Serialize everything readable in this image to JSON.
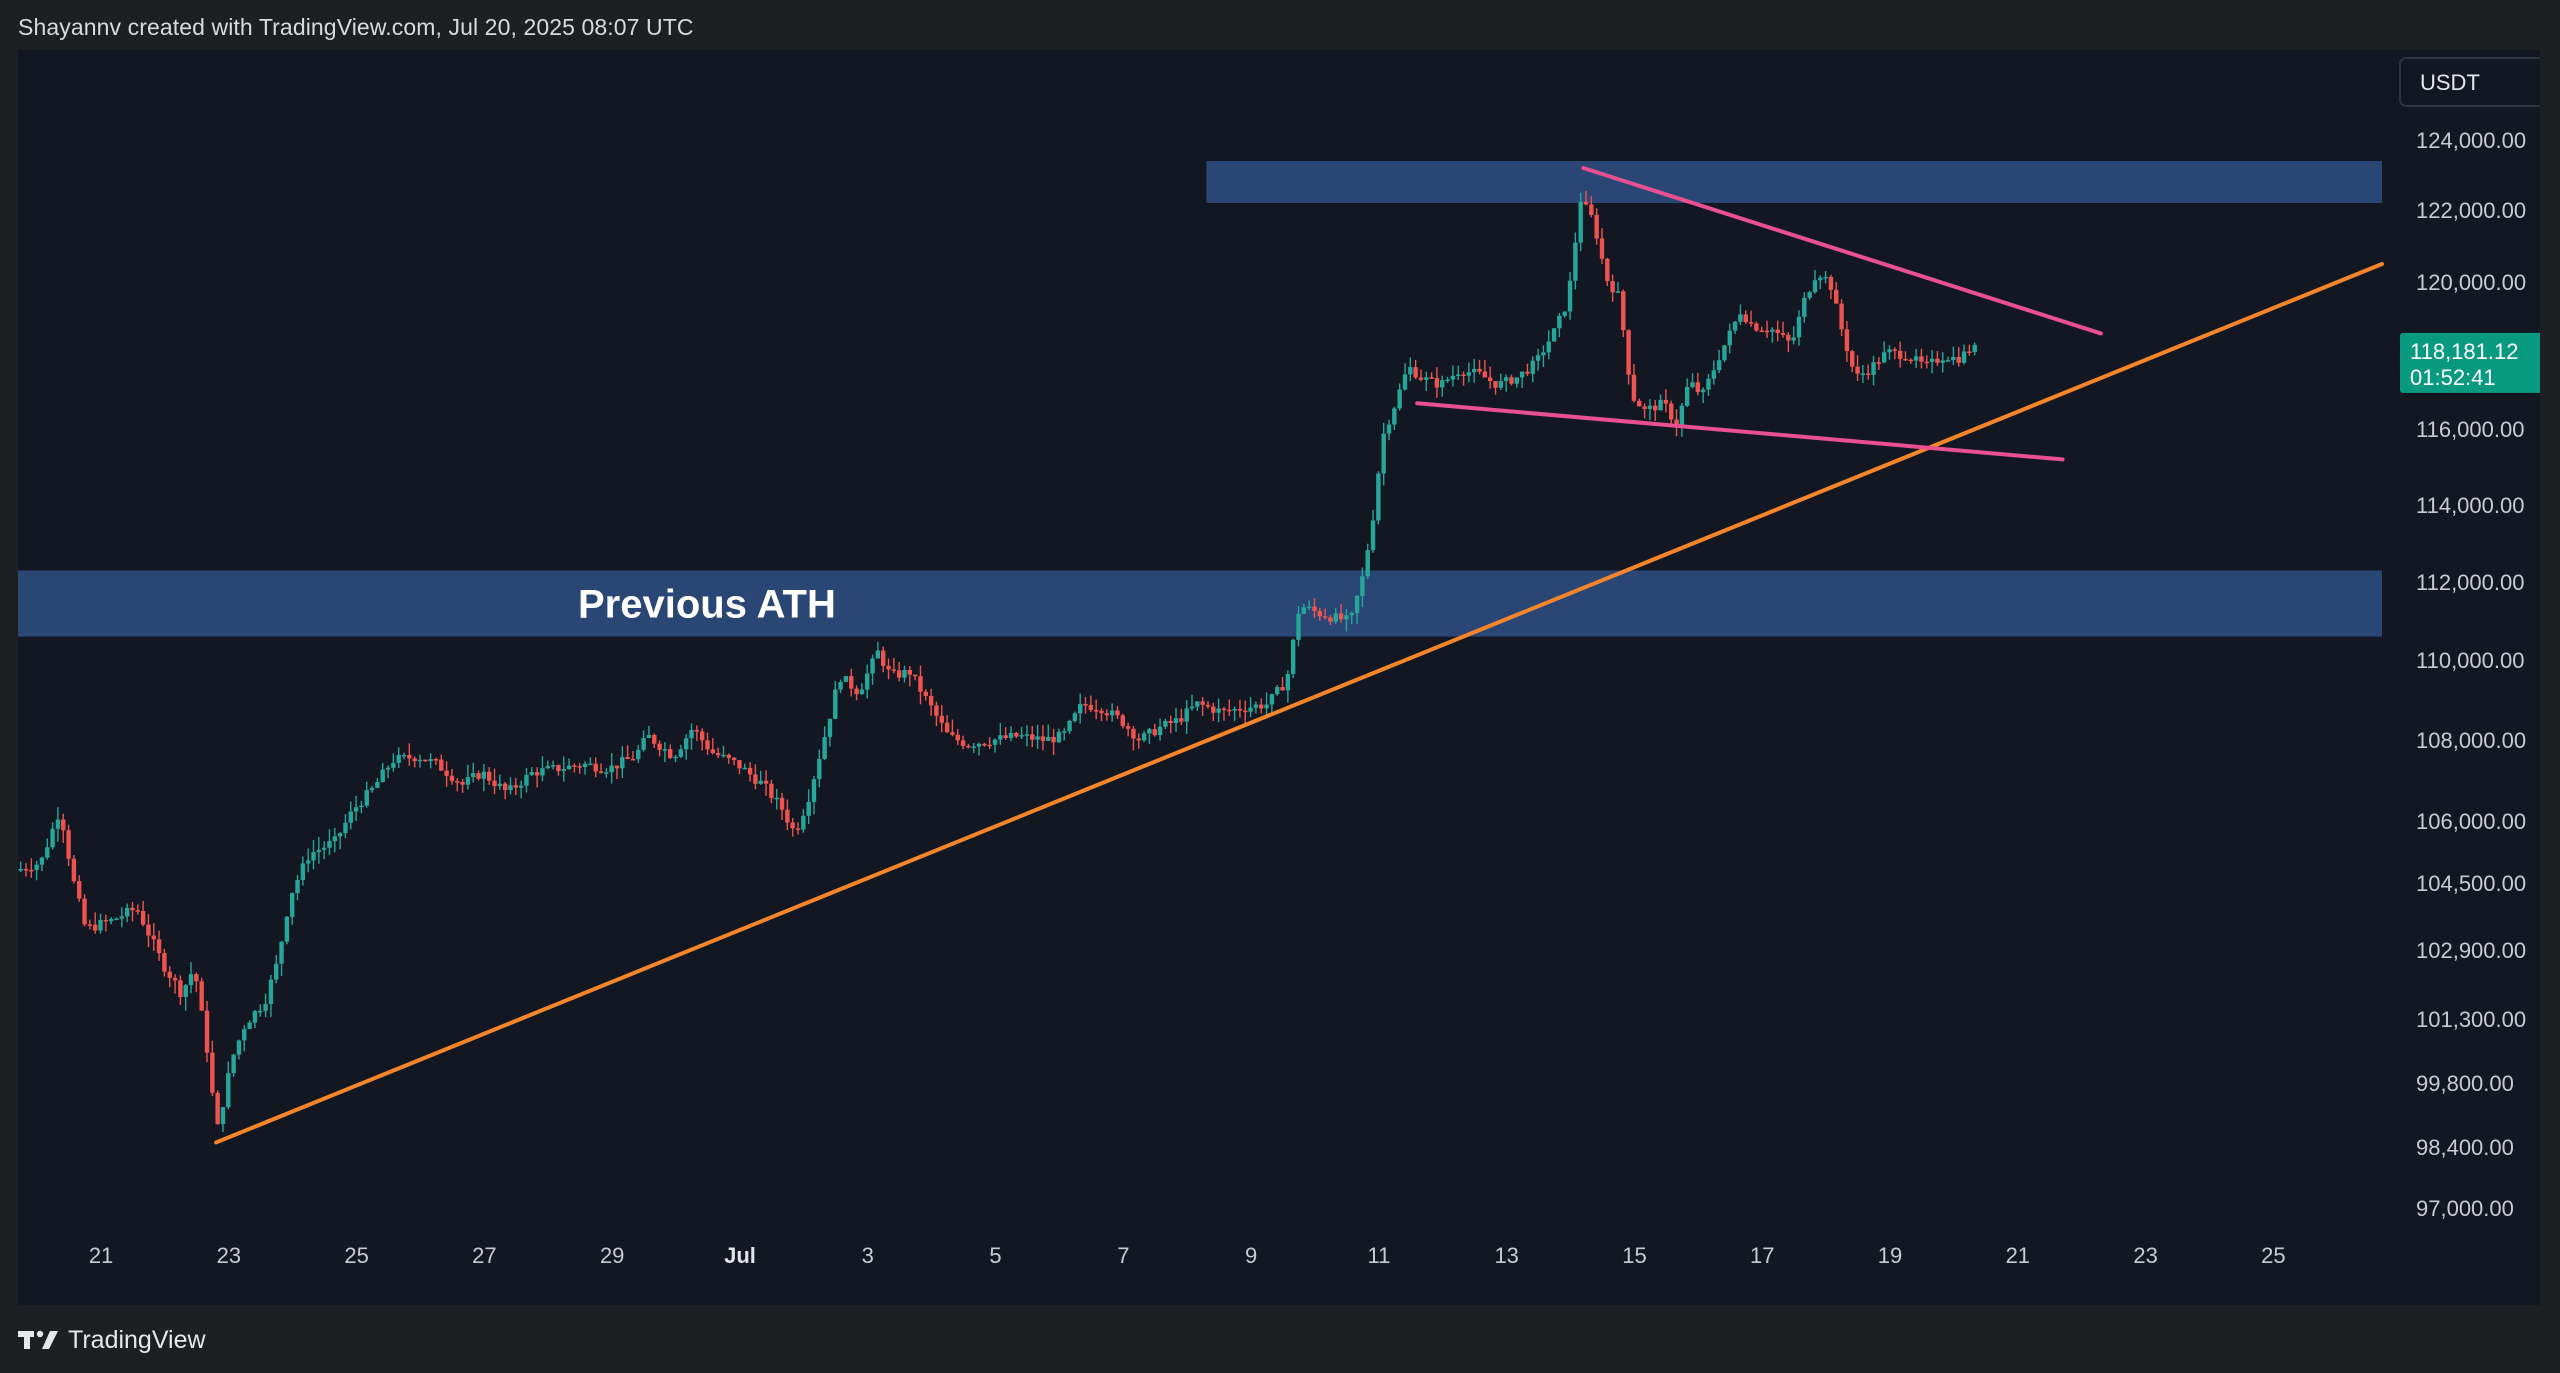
{
  "header": {
    "attribution": "Shayannv created with TradingView.com, Jul 20, 2025 08:07 UTC"
  },
  "footer": {
    "brand": "TradingView"
  },
  "colors": {
    "background": "#131722",
    "up_candle": "#26a69a",
    "down_candle": "#ef5350",
    "zone_fill": "#2e4f84",
    "support_trendline": "#f5852a",
    "wedge_lines": "#e8508f",
    "price_tag": "#089981"
  },
  "chart_data": {
    "type": "candlestick",
    "symbol_currency": "USDT",
    "last_price": "118,181.12",
    "countdown": "01:52:41",
    "ylim": [
      96000,
      125000
    ],
    "y_ticks": [
      {
        "value": 124000,
        "label": "124,000.00"
      },
      {
        "value": 122000,
        "label": "122,000.00"
      },
      {
        "value": 120000,
        "label": "120,000.00"
      },
      {
        "value": 116000,
        "label": "116,000.00"
      },
      {
        "value": 114000,
        "label": "114,000.00"
      },
      {
        "value": 112000,
        "label": "112,000.00"
      },
      {
        "value": 110000,
        "label": "110,000.00"
      },
      {
        "value": 108000,
        "label": "108,000.00"
      },
      {
        "value": 106000,
        "label": "106,000.00"
      },
      {
        "value": 104500,
        "label": "104,500.00"
      },
      {
        "value": 102900,
        "label": "102,900.00"
      },
      {
        "value": 101300,
        "label": "101,300.00"
      },
      {
        "value": 99800,
        "label": "99,800.00"
      },
      {
        "value": 98400,
        "label": "98,400.00"
      },
      {
        "value": 97000,
        "label": "97,000.00"
      }
    ],
    "x_ticks": [
      {
        "label": "21",
        "month": false
      },
      {
        "label": "23",
        "month": false
      },
      {
        "label": "25",
        "month": false
      },
      {
        "label": "27",
        "month": false
      },
      {
        "label": "29",
        "month": false
      },
      {
        "label": "Jul",
        "month": true
      },
      {
        "label": "3",
        "month": false
      },
      {
        "label": "5",
        "month": false
      },
      {
        "label": "7",
        "month": false
      },
      {
        "label": "9",
        "month": false
      },
      {
        "label": "11",
        "month": false
      },
      {
        "label": "13",
        "month": false
      },
      {
        "label": "15",
        "month": false
      },
      {
        "label": "17",
        "month": false
      },
      {
        "label": "19",
        "month": false
      },
      {
        "label": "21",
        "month": false
      },
      {
        "label": "23",
        "month": false
      },
      {
        "label": "25",
        "month": false
      }
    ],
    "x_range_days": [
      "Jun 19.7",
      "Jul 26.7"
    ],
    "price_path": [
      [
        "Jun 19.7",
        104800
      ],
      [
        "Jun 20.1",
        105000
      ],
      [
        "Jun 20.4",
        106300
      ],
      [
        "Jun 20.6",
        104600
      ],
      [
        "Jun 20.8",
        103400
      ],
      [
        "Jun 21.2",
        103600
      ],
      [
        "Jun 21.6",
        103900
      ],
      [
        "Jun 22.0",
        102600
      ],
      [
        "Jun 22.3",
        101900
      ],
      [
        "Jun 22.5",
        102500
      ],
      [
        "Jun 22.7",
        100600
      ],
      [
        "Jun 22.85",
        98700
      ],
      [
        "Jun 23.1",
        100400
      ],
      [
        "Jun 23.3",
        101200
      ],
      [
        "Jun 23.6",
        101700
      ],
      [
        "Jun 23.8",
        102600
      ],
      [
        "Jun 24.0",
        104200
      ],
      [
        "Jun 24.3",
        105200
      ],
      [
        "Jun 24.7",
        105500
      ],
      [
        "Jun 25.0",
        106300
      ],
      [
        "Jun 25.3",
        106800
      ],
      [
        "Jun 25.6",
        107500
      ],
      [
        "Jun 26.0",
        107600
      ],
      [
        "Jun 26.3",
        107400
      ],
      [
        "Jun 26.7",
        106900
      ],
      [
        "Jun 27.0",
        107200
      ],
      [
        "Jun 27.4",
        106700
      ],
      [
        "Jun 27.8",
        107200
      ],
      [
        "Jun 28.2",
        107300
      ],
      [
        "Jun 28.6",
        107400
      ],
      [
        "Jun 29.0",
        107300
      ],
      [
        "Jun 29.4",
        107600
      ],
      [
        "Jun 29.6",
        108100
      ],
      [
        "Jun 30.0",
        107600
      ],
      [
        "Jun 30.3",
        108300
      ],
      [
        "Jun 30.6",
        107700
      ],
      [
        "Jul 1.0",
        107400
      ],
      [
        "Jul 1.4",
        106900
      ],
      [
        "Jul 1.7",
        106300
      ],
      [
        "Jul 1.9",
        105700
      ],
      [
        "Jul 2.1",
        106500
      ],
      [
        "Jul 2.4",
        108300
      ],
      [
        "Jul 2.6",
        109600
      ],
      [
        "Jul 2.9",
        109200
      ],
      [
        "Jul 3.2",
        110200
      ],
      [
        "Jul 3.4",
        109600
      ],
      [
        "Jul 3.7",
        109700
      ],
      [
        "Jul 4.0",
        108900
      ],
      [
        "Jul 4.3",
        108100
      ],
      [
        "Jul 4.6",
        107900
      ],
      [
        "Jul 5.0",
        108000
      ],
      [
        "Jul 5.4",
        108100
      ],
      [
        "Jul 5.8",
        108000
      ],
      [
        "Jul 6.1",
        108100
      ],
      [
        "Jul 6.4",
        108900
      ],
      [
        "Jul 6.7",
        108800
      ],
      [
        "Jul 7.0",
        108500
      ],
      [
        "Jul 7.3",
        108000
      ],
      [
        "Jul 7.6",
        108300
      ],
      [
        "Jul 7.9",
        108500
      ],
      [
        "Jul 8.2",
        108900
      ],
      [
        "Jul 8.6",
        108700
      ],
      [
        "Jul 8.9",
        108800
      ],
      [
        "Jul 9.3",
        108900
      ],
      [
        "Jul 9.6",
        109500
      ],
      [
        "Jul 9.8",
        111400
      ],
      [
        "Jul 10.1",
        111200
      ],
      [
        "Jul 10.3",
        111100
      ],
      [
        "Jul 10.6",
        111000
      ],
      [
        "Jul 10.8",
        112200
      ],
      [
        "Jul 10.95",
        113700
      ],
      [
        "Jul 11.1",
        115800
      ],
      [
        "Jul 11.3",
        116700
      ],
      [
        "Jul 11.5",
        117700
      ],
      [
        "Jul 11.7",
        117400
      ],
      [
        "Jul 12.0",
        117200
      ],
      [
        "Jul 12.3",
        117600
      ],
      [
        "Jul 12.6",
        117500
      ],
      [
        "Jul 12.9",
        117200
      ],
      [
        "Jul 13.2",
        117400
      ],
      [
        "Jul 13.5",
        117800
      ],
      [
        "Jul 13.8",
        118700
      ],
      [
        "Jul 14.0",
        119500
      ],
      [
        "Jul 14.2",
        122300
      ],
      [
        "Jul 14.4",
        121700
      ],
      [
        "Jul 14.6",
        120100
      ],
      [
        "Jul 14.8",
        119600
      ],
      [
        "Jul 15.0",
        116900
      ],
      [
        "Jul 15.2",
        116500
      ],
      [
        "Jul 15.5",
        116700
      ],
      [
        "Jul 15.7",
        116100
      ],
      [
        "Jul 15.9",
        117300
      ],
      [
        "Jul 16.1",
        116900
      ],
      [
        "Jul 16.4",
        118100
      ],
      [
        "Jul 16.7",
        119200
      ],
      [
        "Jul 16.9",
        118800
      ],
      [
        "Jul 17.2",
        118700
      ],
      [
        "Jul 17.5",
        118300
      ],
      [
        "Jul 17.7",
        119500
      ],
      [
        "Jul 17.9",
        120300
      ],
      [
        "Jul 18.1",
        120000
      ],
      [
        "Jul 18.3",
        118600
      ],
      [
        "Jul 18.5",
        117400
      ],
      [
        "Jul 18.7",
        117600
      ],
      [
        "Jul 19.0",
        118100
      ],
      [
        "Jul 19.3",
        118000
      ],
      [
        "Jul 19.6",
        117700
      ],
      [
        "Jul 19.9",
        118000
      ],
      [
        "Jul 20.1",
        117900
      ],
      [
        "Jul 20.3",
        118181
      ]
    ],
    "zones": [
      {
        "label": "Previous ATH",
        "from_date": "Jun 19.7",
        "to_date": "Jul 26.7",
        "low": 110600,
        "high": 112300
      },
      {
        "label": "",
        "from_date": "Jul 8.3",
        "to_date": "Jul 26.7",
        "low": 122200,
        "high": 123400
      }
    ],
    "trendlines": [
      {
        "name": "support",
        "color_key": "support_trendline",
        "points": [
          [
            "Jun 22.8",
            98500
          ],
          [
            "Jul 26.7",
            120500
          ]
        ]
      },
      {
        "name": "wedge-upper",
        "color_key": "wedge_lines",
        "points": [
          [
            "Jul 14.2",
            123200
          ],
          [
            "Jul 22.3",
            118600
          ]
        ]
      },
      {
        "name": "wedge-lower",
        "color_key": "wedge_lines",
        "points": [
          [
            "Jul 11.6",
            116700
          ],
          [
            "Jul 21.7",
            115200
          ]
        ]
      }
    ]
  }
}
